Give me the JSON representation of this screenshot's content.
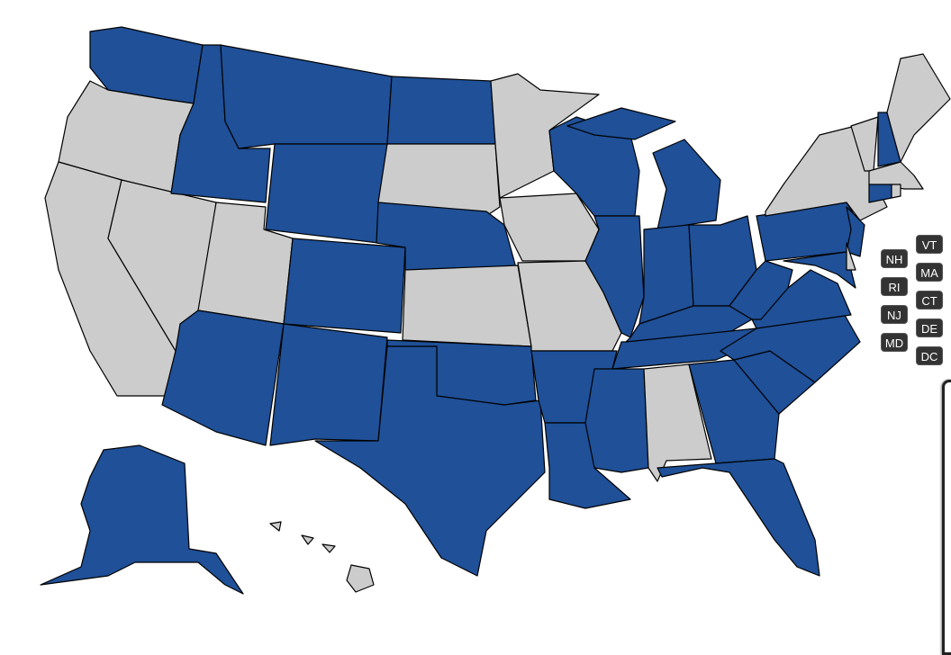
{
  "colors": {
    "selected": "#1f5098",
    "unselected": "#cccccc",
    "label_bg": "#333333",
    "label_text": "#ffffff"
  },
  "selected_states": [
    "WA",
    "ID",
    "MT",
    "ND",
    "WY",
    "NE",
    "CO",
    "AZ",
    "NM",
    "TX",
    "OK",
    "AR",
    "LA",
    "MS",
    "TN",
    "KY",
    "IL",
    "WI",
    "MI",
    "IN",
    "OH",
    "WV",
    "VA",
    "NC",
    "SC",
    "GA",
    "FL",
    "PA",
    "NJ",
    "MD",
    "NH",
    "CT",
    "AK"
  ],
  "unselected_states": [
    "OR",
    "CA",
    "NV",
    "UT",
    "SD",
    "MN",
    "IA",
    "KS",
    "MO",
    "AL",
    "NY",
    "VT",
    "ME",
    "MA",
    "RI",
    "DE",
    "HI"
  ],
  "small_state_labels": {
    "left": [
      "NH",
      "RI",
      "NJ",
      "MD"
    ],
    "right": [
      "VT",
      "MA",
      "CT",
      "DE",
      "DC"
    ]
  }
}
